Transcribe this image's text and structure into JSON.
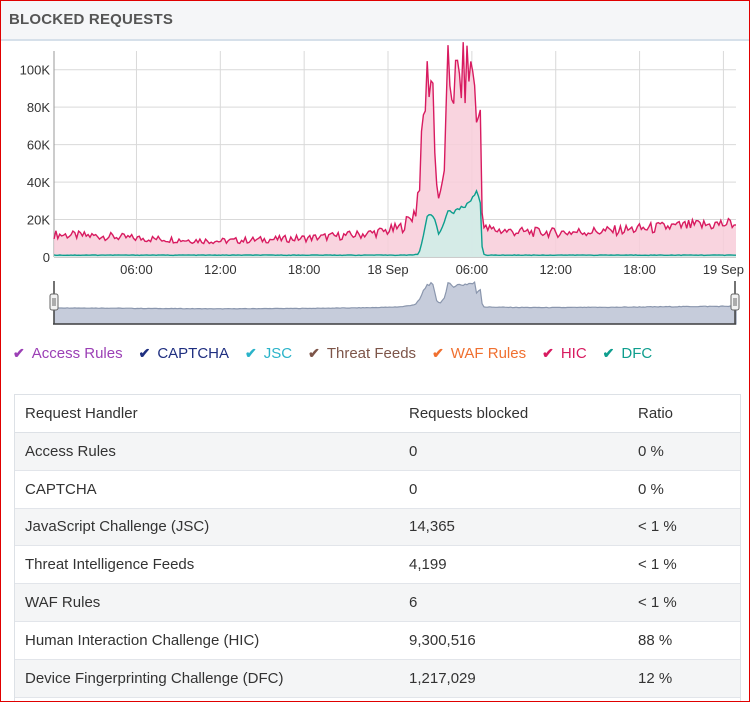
{
  "panel": {
    "title": "BLOCKED REQUESTS"
  },
  "colors": {
    "access_rules": "#9b3fb5",
    "captcha": "#1f2f80",
    "jsc": "#2ab3c9",
    "threat_feeds": "#7d5549",
    "waf_rules": "#f07030",
    "hic": "#d81b60",
    "dfc": "#0e9e8e",
    "navigator": "#8a96ad"
  },
  "chart_data": {
    "type": "area",
    "title": "",
    "y_ticks": [
      "0",
      "20K",
      "40K",
      "60K",
      "80K",
      "100K"
    ],
    "ylim": [
      0,
      110000
    ],
    "x_tick_labels": [
      "06:00",
      "12:00",
      "18:00",
      "18 Sep",
      "06:00",
      "12:00",
      "18:00",
      "19 Sep"
    ],
    "x_tick_hours": [
      6,
      12,
      18,
      24,
      30,
      36,
      42,
      48
    ],
    "xlim_hours": [
      0.1,
      48.9
    ],
    "grid": true,
    "series": [
      {
        "name": "HIC",
        "color": "#d81b60",
        "fill": "#f8ccd9",
        "points": [
          [
            0.1,
            12000
          ],
          [
            2,
            11500
          ],
          [
            4,
            11000
          ],
          [
            6,
            10000
          ],
          [
            8,
            9500
          ],
          [
            10,
            9000
          ],
          [
            12,
            8500
          ],
          [
            14,
            9000
          ],
          [
            16,
            9500
          ],
          [
            18,
            10000
          ],
          [
            20,
            11000
          ],
          [
            22,
            12000
          ],
          [
            23,
            13000
          ],
          [
            24,
            14000
          ],
          [
            25,
            16000
          ],
          [
            25.5,
            20000
          ],
          [
            26,
            25000
          ],
          [
            26.3,
            45000
          ],
          [
            26.6,
            80000
          ],
          [
            26.9,
            100000
          ],
          [
            27.2,
            92000
          ],
          [
            27.5,
            35000
          ],
          [
            27.8,
            30000
          ],
          [
            28.1,
            58000
          ],
          [
            28.3,
            96000
          ],
          [
            28.6,
            92000
          ],
          [
            29,
            94000
          ],
          [
            29.4,
            96000
          ],
          [
            29.7,
            99000
          ],
          [
            30.2,
            100000
          ],
          [
            30.35,
            60000
          ],
          [
            30.5,
            80000
          ],
          [
            30.65,
            78000
          ],
          [
            30.75,
            20000
          ],
          [
            30.8,
            16000
          ],
          [
            31,
            15000
          ],
          [
            33,
            13500
          ],
          [
            36,
            13000
          ],
          [
            40,
            14000
          ],
          [
            44,
            16000
          ],
          [
            48.9,
            18000
          ]
        ]
      },
      {
        "name": "DFC",
        "color": "#0e9e8e",
        "fill": "#cfeee9",
        "points": [
          [
            0.1,
            1000
          ],
          [
            25.5,
            1000
          ],
          [
            26.2,
            1500
          ],
          [
            26.5,
            10000
          ],
          [
            26.8,
            22000
          ],
          [
            27.3,
            22000
          ],
          [
            27.6,
            12000
          ],
          [
            27.9,
            16000
          ],
          [
            28.3,
            25000
          ],
          [
            28.7,
            24000
          ],
          [
            29.2,
            26000
          ],
          [
            29.7,
            28000
          ],
          [
            30.1,
            33000
          ],
          [
            30.35,
            36000
          ],
          [
            30.6,
            28000
          ],
          [
            30.75,
            3000
          ],
          [
            30.9,
            1000
          ],
          [
            48.9,
            1000
          ]
        ]
      }
    ]
  },
  "legend": [
    {
      "label": "Access Rules",
      "color": "#9b3fb5"
    },
    {
      "label": "CAPTCHA",
      "color": "#1f2f80"
    },
    {
      "label": "JSC",
      "color": "#2ab3c9"
    },
    {
      "label": "Threat Feeds",
      "color": "#7d5549"
    },
    {
      "label": "WAF Rules",
      "color": "#f07030"
    },
    {
      "label": "HIC",
      "color": "#d81b60"
    },
    {
      "label": "DFC",
      "color": "#0e9e8e"
    }
  ],
  "table": {
    "headers": [
      "Request Handler",
      "Requests blocked",
      "Ratio"
    ],
    "rows": [
      [
        "Access Rules",
        "0",
        "0 %"
      ],
      [
        "CAPTCHA",
        "0",
        "0 %"
      ],
      [
        "JavaScript Challenge (JSC)",
        "14,365",
        "< 1 %"
      ],
      [
        "Threat Intelligence Feeds",
        "4,199",
        "< 1 %"
      ],
      [
        "WAF Rules",
        "6",
        "< 1 %"
      ],
      [
        "Human Interaction Challenge (HIC)",
        "9,300,516",
        "88 %"
      ],
      [
        "Device Fingerprinting Challenge (DFC)",
        "1,217,029",
        "12 %"
      ]
    ]
  }
}
